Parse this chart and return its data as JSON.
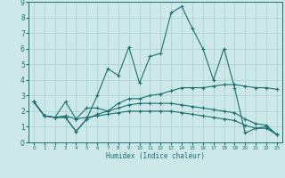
{
  "xlabel": "Humidex (Indice chaleur)",
  "bg_color": "#cde8e8",
  "grid_color": "#aacece",
  "line_color": "#1a7070",
  "xlim": [
    -0.5,
    23.5
  ],
  "ylim": [
    0,
    9
  ],
  "xticks": [
    0,
    1,
    2,
    3,
    4,
    5,
    6,
    7,
    8,
    9,
    10,
    11,
    12,
    13,
    14,
    15,
    16,
    17,
    18,
    19,
    20,
    21,
    22,
    23
  ],
  "yticks": [
    0,
    1,
    2,
    3,
    4,
    5,
    6,
    7,
    8,
    9
  ],
  "lines": [
    {
      "x": [
        0,
        1,
        2,
        3,
        4,
        5,
        6,
        7,
        8,
        9,
        10,
        11,
        12,
        13,
        14,
        15,
        16,
        17,
        18,
        19,
        20,
        21,
        22,
        23
      ],
      "y": [
        2.6,
        1.7,
        1.6,
        1.6,
        0.7,
        1.5,
        3.0,
        4.7,
        4.3,
        6.1,
        3.8,
        5.5,
        5.7,
        8.3,
        8.7,
        7.3,
        6.0,
        4.0,
        6.0,
        3.5,
        0.6,
        0.9,
        1.0,
        0.5
      ]
    },
    {
      "x": [
        0,
        1,
        2,
        3,
        4,
        5,
        6,
        7,
        8,
        9,
        10,
        11,
        12,
        13,
        14,
        15,
        16,
        17,
        18,
        19,
        20,
        21,
        22,
        23
      ],
      "y": [
        2.6,
        1.7,
        1.6,
        2.6,
        1.5,
        2.2,
        2.2,
        2.0,
        2.5,
        2.8,
        2.8,
        3.0,
        3.1,
        3.3,
        3.5,
        3.5,
        3.5,
        3.6,
        3.7,
        3.7,
        3.6,
        3.5,
        3.5,
        3.4
      ]
    },
    {
      "x": [
        0,
        1,
        2,
        3,
        4,
        5,
        6,
        7,
        8,
        9,
        10,
        11,
        12,
        13,
        14,
        15,
        16,
        17,
        18,
        19,
        20,
        21,
        22,
        23
      ],
      "y": [
        2.6,
        1.7,
        1.6,
        1.6,
        0.7,
        1.5,
        1.8,
        2.0,
        2.2,
        2.4,
        2.5,
        2.5,
        2.5,
        2.5,
        2.4,
        2.3,
        2.2,
        2.1,
        2.0,
        1.9,
        1.5,
        1.2,
        1.1,
        0.5
      ]
    },
    {
      "x": [
        0,
        1,
        2,
        3,
        4,
        5,
        6,
        7,
        8,
        9,
        10,
        11,
        12,
        13,
        14,
        15,
        16,
        17,
        18,
        19,
        20,
        21,
        22,
        23
      ],
      "y": [
        2.6,
        1.7,
        1.6,
        1.7,
        1.5,
        1.6,
        1.7,
        1.8,
        1.9,
        2.0,
        2.0,
        2.0,
        2.0,
        2.0,
        1.9,
        1.8,
        1.7,
        1.6,
        1.5,
        1.4,
        1.1,
        0.9,
        0.9,
        0.5
      ]
    }
  ]
}
